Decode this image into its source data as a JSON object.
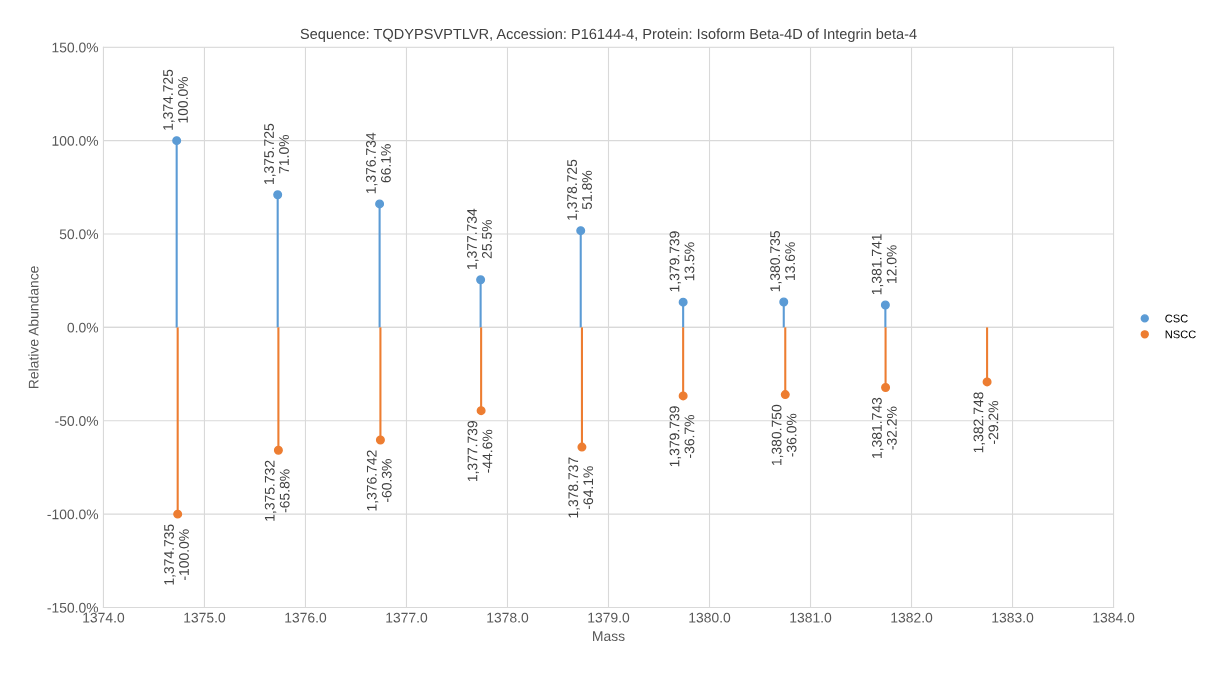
{
  "chart_data": {
    "type": "lollipop",
    "title": "Sequence: TQDYPSVPTLVR, Accession: P16144-4, Protein: Isoform Beta-4D of Integrin beta-4",
    "xlabel": "Mass",
    "ylabel": "Relative Abundance",
    "series": [
      {
        "name": "CSC",
        "color": "#5b9bd5",
        "x": [
          1374.725,
          1375.725,
          1376.734,
          1377.734,
          1378.725,
          1379.739,
          1380.735,
          1381.741
        ],
        "values": [
          100.0,
          71.0,
          66.1,
          25.5,
          51.8,
          13.5,
          13.6,
          12.0
        ],
        "value_labels": [
          "1,374.725\n100.0%",
          "1,375.725\n71.0%",
          "1,376.734\n66.1%",
          "1,377.734\n25.5%",
          "1,378.725\n51.8%",
          "1,379.739\n13.5%",
          "1,380.735\n13.6%",
          "1,381.741\n12.0%"
        ]
      },
      {
        "name": "NSCC",
        "color": "#ed7d31",
        "x": [
          1374.735,
          1375.732,
          1376.742,
          1377.739,
          1378.737,
          1379.739,
          1380.75,
          1381.743,
          1382.748
        ],
        "values": [
          -100.0,
          -65.8,
          -60.3,
          -44.6,
          -64.1,
          -36.7,
          -36.0,
          -32.2,
          -29.2
        ],
        "value_labels": [
          "1,374.735\n-100.0%",
          "1,375.732\n-65.8%",
          "1,376.742\n-60.3%",
          "1,377.739\n-44.6%",
          "1,378.737\n-64.1%",
          "1,379.739\n-36.7%",
          "1,380.750\n-36.0%",
          "1,381.743\n-32.2%",
          "1,382.748\n-29.2%"
        ]
      }
    ],
    "xlim": [
      1374.0,
      1384.0
    ],
    "xticks": [
      {
        "value": 1374,
        "label": "1374.0"
      },
      {
        "value": 1375,
        "label": "1375.0"
      },
      {
        "value": 1376,
        "label": "1376.0"
      },
      {
        "value": 1377,
        "label": "1377.0"
      },
      {
        "value": 1378,
        "label": "1378.0"
      },
      {
        "value": 1379,
        "label": "1379.0"
      },
      {
        "value": 1380,
        "label": "1380.0"
      },
      {
        "value": 1381,
        "label": "1381.0"
      },
      {
        "value": 1382,
        "label": "1382.0"
      },
      {
        "value": 1383,
        "label": "1383.0"
      },
      {
        "value": 1384,
        "label": "1384.0"
      }
    ],
    "ylim": [
      -150,
      150
    ],
    "yticks": [
      {
        "value": -150,
        "label": "-150.0%"
      },
      {
        "value": -100,
        "label": "-100.0%"
      },
      {
        "value": -50,
        "label": "-50.0%"
      },
      {
        "value": 0,
        "label": "0.0%"
      },
      {
        "value": 50,
        "label": "50.0%"
      },
      {
        "value": 100,
        "label": "100.0%"
      },
      {
        "value": 150,
        "label": "150.0%"
      }
    ],
    "grid": true,
    "legend": "right",
    "marker": "circle"
  }
}
